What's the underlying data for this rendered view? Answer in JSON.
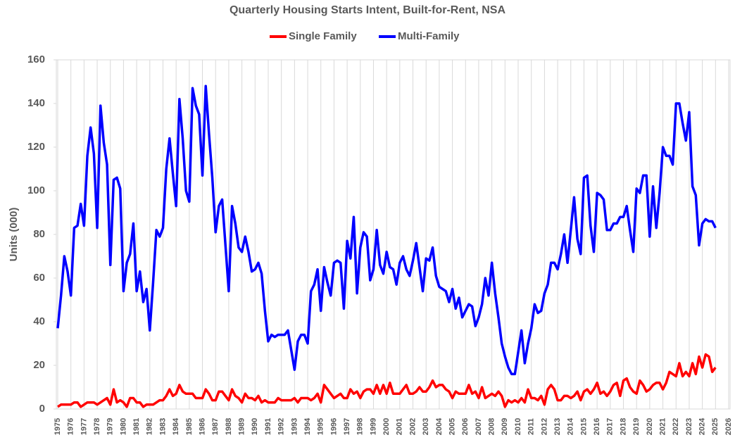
{
  "chart_data": {
    "type": "line",
    "title": "Quarterly Housing Starts Intent, Built-for-Rent, NSA",
    "y_label": "Units (000)",
    "x": [
      1975,
      1975.25,
      1975.5,
      1975.75,
      1976,
      1976.25,
      1976.5,
      1976.75,
      1977,
      1977.25,
      1977.5,
      1977.75,
      1978,
      1978.25,
      1978.5,
      1978.75,
      1979,
      1979.25,
      1979.5,
      1979.75,
      1980,
      1980.25,
      1980.5,
      1980.75,
      1981,
      1981.25,
      1981.5,
      1981.75,
      1982,
      1982.25,
      1982.5,
      1982.75,
      1983,
      1983.25,
      1983.5,
      1983.75,
      1984,
      1984.25,
      1984.5,
      1984.75,
      1985,
      1985.25,
      1985.5,
      1985.75,
      1986,
      1986.25,
      1986.5,
      1986.75,
      1987,
      1987.25,
      1987.5,
      1987.75,
      1988,
      1988.25,
      1988.5,
      1988.75,
      1989,
      1989.25,
      1989.5,
      1989.75,
      1990,
      1990.25,
      1990.5,
      1990.75,
      1991,
      1991.25,
      1991.5,
      1991.75,
      1992,
      1992.25,
      1992.5,
      1992.75,
      1993,
      1993.25,
      1993.5,
      1993.75,
      1994,
      1994.25,
      1994.5,
      1994.75,
      1995,
      1995.25,
      1995.5,
      1995.75,
      1996,
      1996.25,
      1996.5,
      1996.75,
      1997,
      1997.25,
      1997.5,
      1997.75,
      1998,
      1998.25,
      1998.5,
      1998.75,
      1999,
      1999.25,
      1999.5,
      1999.75,
      2000,
      2000.25,
      2000.5,
      2000.75,
      2001,
      2001.25,
      2001.5,
      2001.75,
      2002,
      2002.25,
      2002.5,
      2002.75,
      2003,
      2003.25,
      2003.5,
      2003.75,
      2004,
      2004.25,
      2004.5,
      2004.75,
      2005,
      2005.25,
      2005.5,
      2005.75,
      2006,
      2006.25,
      2006.5,
      2006.75,
      2007,
      2007.25,
      2007.5,
      2007.75,
      2008,
      2008.25,
      2008.5,
      2008.75,
      2009,
      2009.25,
      2009.5,
      2009.75,
      2010,
      2010.25,
      2010.5,
      2010.75,
      2011,
      2011.25,
      2011.5,
      2011.75,
      2012,
      2012.25,
      2012.5,
      2012.75,
      2013,
      2013.25,
      2013.5,
      2013.75,
      2014,
      2014.25,
      2014.5,
      2014.75,
      2015,
      2015.25,
      2015.5,
      2015.75,
      2016,
      2016.25,
      2016.5,
      2016.75,
      2017,
      2017.25,
      2017.5,
      2017.75,
      2018,
      2018.25,
      2018.5,
      2018.75,
      2019,
      2019.25,
      2019.5,
      2019.75,
      2020,
      2020.25,
      2020.5,
      2020.75,
      2021,
      2021.25,
      2021.5,
      2021.75,
      2022,
      2022.25,
      2022.5,
      2022.75,
      2023,
      2023.25,
      2023.5,
      2023.75,
      2024,
      2024.25,
      2024.5,
      2024.75,
      2025
    ],
    "series": [
      {
        "name": "Single Family",
        "color": "#ff0000",
        "values": [
          1,
          2,
          2,
          2,
          2,
          3,
          3,
          1,
          2,
          3,
          3,
          3,
          2,
          3,
          4,
          5,
          2,
          9,
          3,
          4,
          3,
          1,
          5,
          5,
          3,
          3,
          1,
          2,
          2,
          2,
          3,
          4,
          4,
          6,
          9,
          6,
          7,
          11,
          8,
          7,
          7,
          7,
          5,
          5,
          5,
          9,
          7,
          4,
          4,
          8,
          8,
          6,
          4,
          9,
          6,
          5,
          3,
          7,
          5,
          5,
          4,
          6,
          3,
          4,
          3,
          3,
          3,
          5,
          4,
          4,
          4,
          4,
          5,
          3,
          5,
          5,
          5,
          4,
          5,
          7,
          3,
          11,
          9,
          7,
          5,
          6,
          7,
          5,
          5,
          9,
          7,
          8,
          5,
          8,
          9,
          9,
          7,
          11,
          7,
          11,
          7,
          12,
          7,
          7,
          7,
          9,
          11,
          7,
          7,
          8,
          10,
          8,
          8,
          10,
          13,
          10,
          11,
          11,
          9,
          8,
          5,
          8,
          7,
          7,
          7,
          11,
          7,
          8,
          5,
          10,
          5,
          6,
          7,
          6,
          8,
          6,
          1,
          4,
          3,
          4,
          3,
          5,
          3,
          9,
          5,
          5,
          4,
          6,
          2,
          9,
          11,
          9,
          4,
          4,
          6,
          6,
          5,
          6,
          8,
          4,
          8,
          9,
          7,
          9,
          12,
          7,
          8,
          6,
          8,
          11,
          12,
          6,
          13,
          14,
          10,
          8,
          7,
          13,
          11,
          8,
          9,
          11,
          12,
          12,
          9,
          12,
          17,
          16,
          15,
          21,
          15,
          17,
          15,
          21,
          16,
          24,
          19,
          25,
          24,
          17,
          19
        ]
      },
      {
        "name": "Multi-Family",
        "color": "#0000ff",
        "values": [
          37,
          52,
          70,
          63,
          52,
          83,
          84,
          94,
          84,
          116,
          129,
          117,
          83,
          139,
          122,
          112,
          66,
          105,
          106,
          101,
          54,
          67,
          71,
          85,
          54,
          63,
          49,
          55,
          36,
          58,
          82,
          79,
          83,
          110,
          124,
          108,
          93,
          142,
          124,
          100,
          95,
          147,
          139,
          135,
          107,
          148,
          126,
          106,
          81,
          93,
          96,
          75,
          54,
          93,
          85,
          74,
          72,
          79,
          72,
          63,
          64,
          67,
          62,
          45,
          31,
          34,
          33,
          34,
          34,
          34,
          36,
          27,
          18,
          31,
          34,
          34,
          30,
          54,
          57,
          64,
          45,
          65,
          58,
          52,
          67,
          68,
          67,
          46,
          77,
          69,
          88,
          53,
          74,
          81,
          79,
          59,
          64,
          82,
          66,
          62,
          72,
          65,
          64,
          57,
          67,
          70,
          64,
          61,
          68,
          76,
          65,
          54,
          69,
          68,
          74,
          61,
          56,
          55,
          54,
          49,
          55,
          46,
          51,
          42,
          45,
          48,
          47,
          38,
          42,
          48,
          60,
          52,
          67,
          53,
          42,
          30,
          24,
          19,
          16,
          16,
          26,
          36,
          21,
          30,
          37,
          48,
          44,
          45,
          53,
          57,
          67,
          67,
          64,
          71,
          80,
          67,
          82,
          97,
          78,
          71,
          106,
          107,
          84,
          72,
          99,
          98,
          96,
          82,
          82,
          85,
          85,
          88,
          88,
          93,
          82,
          72,
          101,
          99,
          107,
          107,
          79,
          102,
          83,
          99,
          120,
          116,
          116,
          112,
          140,
          140,
          131,
          123,
          136,
          102,
          98,
          75,
          85,
          87,
          86,
          86,
          83
        ]
      }
    ],
    "xlim": [
      1975,
      2026
    ],
    "xticks": [
      1975,
      1976,
      1977,
      1978,
      1979,
      1980,
      1981,
      1982,
      1983,
      1984,
      1985,
      1986,
      1987,
      1988,
      1989,
      1990,
      1991,
      1992,
      1993,
      1994,
      1995,
      1996,
      1997,
      1998,
      1999,
      2000,
      2001,
      2002,
      2003,
      2004,
      2005,
      2006,
      2007,
      2008,
      2009,
      2010,
      2011,
      2012,
      2013,
      2014,
      2015,
      2016,
      2017,
      2018,
      2019,
      2020,
      2021,
      2022,
      2023,
      2024,
      2025,
      2026
    ],
    "ylim": [
      0,
      160
    ],
    "yticks": [
      0,
      20,
      40,
      60,
      80,
      100,
      120,
      140,
      160
    ],
    "grid": true
  }
}
